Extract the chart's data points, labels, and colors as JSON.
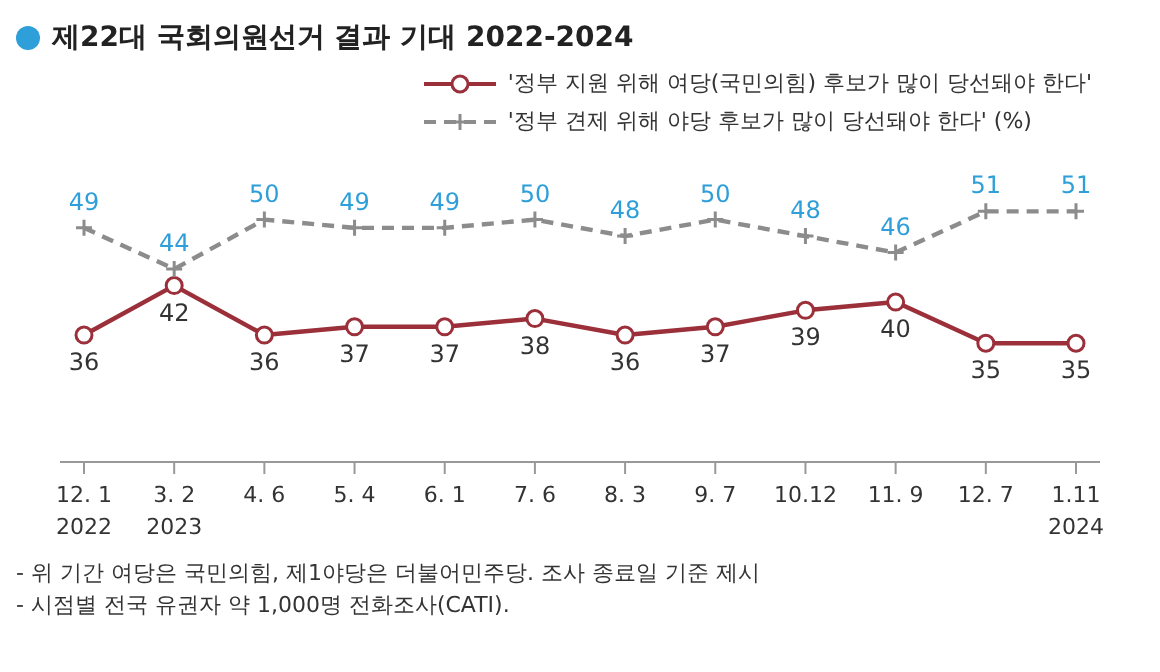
{
  "chart_data": {
    "type": "line",
    "title": "제22대 국회의원선거 결과 기대 2022-2024",
    "categories": [
      "12. 1\n2022",
      "3. 2\n2023",
      "4. 6",
      "5. 4",
      "6. 1",
      "7. 6",
      "8. 3",
      "9. 7",
      "10.12",
      "11. 9",
      "12. 7",
      "1.11\n2024"
    ],
    "series": [
      {
        "name": "'정부 지원 위해 여당(국민의힘) 후보가 많이 당선돼야 한다'",
        "color": "#9b2f3a",
        "marker": "circle",
        "line_style": "solid",
        "values": [
          36,
          42,
          36,
          37,
          37,
          38,
          36,
          37,
          39,
          40,
          35,
          35
        ]
      },
      {
        "name": "'정부 견제 위해 야당 후보가 많이 당선돼야 한다' (%)",
        "color": "#8c8c8c",
        "marker": "cross",
        "line_style": "dashed",
        "values": [
          49,
          44,
          50,
          49,
          49,
          50,
          48,
          50,
          48,
          46,
          51,
          51
        ]
      }
    ],
    "data_labels": true,
    "legend": "top right",
    "tick_labels": "x",
    "annotations": [
      "- 위 기간 여당은 국민의힘, 제1야당은 더불어민주당. 조사 종료일 기준 제시",
      "- 시점별 전국 유권자 약 1,000명 전화조사(CATI)."
    ]
  }
}
